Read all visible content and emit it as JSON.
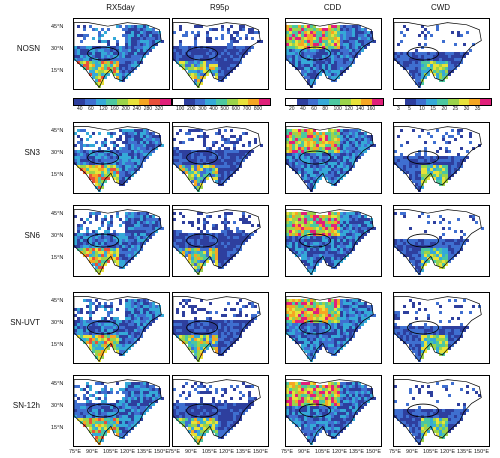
{
  "figure": {
    "columns": [
      "RX5day",
      "R95p",
      "CDD",
      "CWD"
    ],
    "rows": [
      "NOSN",
      "SN3",
      "SN6",
      "SN-UVT",
      "SN-12h"
    ],
    "lat_ticks": [
      "45°N",
      "30°N",
      "15°N"
    ],
    "lon_ticks": [
      "75°E",
      "90°E",
      "105°E",
      "120°E",
      "135°E",
      "150°E"
    ]
  },
  "colorbars": [
    {
      "labels": [
        "40",
        "60",
        "120",
        "160",
        "200",
        "240",
        "280",
        "320"
      ],
      "colors": [
        "#2e3f9e",
        "#3f6fd0",
        "#35a9d8",
        "#4cc7a0",
        "#9bd34a",
        "#e8e23a",
        "#f5a623",
        "#e8503a",
        "#e0207a"
      ]
    },
    {
      "labels": [
        "100",
        "200",
        "300",
        "400",
        "500",
        "600",
        "700",
        "800"
      ],
      "colors": [
        "#ffffff",
        "#2e3f9e",
        "#3f6fd0",
        "#35a9d8",
        "#4cc7a0",
        "#9bd34a",
        "#e8e23a",
        "#f5a623",
        "#e0207a"
      ]
    },
    {
      "labels": [
        "20",
        "40",
        "60",
        "80",
        "100",
        "120",
        "140",
        "160"
      ],
      "colors": [
        "#ffffff",
        "#2e3f9e",
        "#3f6fd0",
        "#35a9d8",
        "#4cc7a0",
        "#9bd34a",
        "#e8e23a",
        "#f5a623",
        "#e0207a"
      ]
    },
    {
      "labels": [
        "3",
        "5",
        "10",
        "15",
        "20",
        "25",
        "30",
        "35"
      ],
      "colors": [
        "#ffffff",
        "#2e3f9e",
        "#3f6fd0",
        "#35a9d8",
        "#4cc7a0",
        "#9bd34a",
        "#e8e23a",
        "#f5a623",
        "#e0207a"
      ]
    }
  ],
  "chart_data": {
    "type": "heatmap",
    "panels": 20,
    "x_range": [
      65,
      155
    ],
    "y_range": [
      0,
      55
    ],
    "grid": false
  }
}
